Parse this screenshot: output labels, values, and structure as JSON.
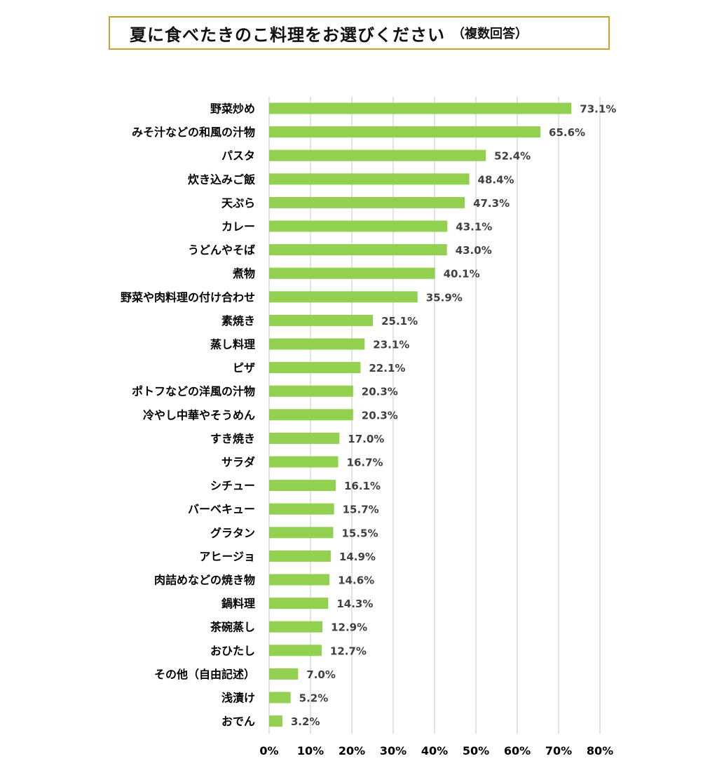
{
  "chart_data": {
    "type": "bar",
    "orientation": "horizontal",
    "title": "夏に食べたきのこ料理をお選びください",
    "subtitle": "（複数回答）",
    "categories": [
      "野菜炒め",
      "みそ汁などの和風の汁物",
      "パスタ",
      "炊き込みご飯",
      "天ぷら",
      "カレー",
      "うどんやそば",
      "煮物",
      "野菜や肉料理の付け合わせ",
      "素焼き",
      "蒸し料理",
      "ピザ",
      "ポトフなどの洋風の汁物",
      "冷やし中華やそうめん",
      "すき焼き",
      "サラダ",
      "シチュー",
      "バーベキュー",
      "グラタン",
      "アヒージョ",
      "肉詰めなどの焼き物",
      "鍋料理",
      "茶碗蒸し",
      "おひたし",
      "その他（自由記述）",
      "浅漬け",
      "おでん"
    ],
    "values": [
      73.1,
      65.6,
      52.4,
      48.4,
      47.3,
      43.1,
      43.0,
      40.1,
      35.9,
      25.1,
      23.1,
      22.1,
      20.3,
      20.3,
      17.0,
      16.7,
      16.1,
      15.7,
      15.5,
      14.9,
      14.6,
      14.3,
      12.9,
      12.7,
      7.0,
      5.2,
      3.2
    ],
    "value_labels": [
      "73.1%",
      "65.6%",
      "52.4%",
      "48.4%",
      "47.3%",
      "43.1%",
      "43.0%",
      "40.1%",
      "35.9%",
      "25.1%",
      "23.1%",
      "22.1%",
      "20.3%",
      "20.3%",
      "17.0%",
      "16.7%",
      "16.1%",
      "15.7%",
      "15.5%",
      "14.9%",
      "14.6%",
      "14.3%",
      "12.9%",
      "12.7%",
      "7.0%",
      "5.2%",
      "3.2%"
    ],
    "xlim": [
      0,
      80
    ],
    "xticks": [
      "0%",
      "10%",
      "20%",
      "30%",
      "40%",
      "50%",
      "60%",
      "70%",
      "80%"
    ],
    "grid": true,
    "bar_color": "#92d050",
    "title_border_color": "#c8a42a"
  }
}
